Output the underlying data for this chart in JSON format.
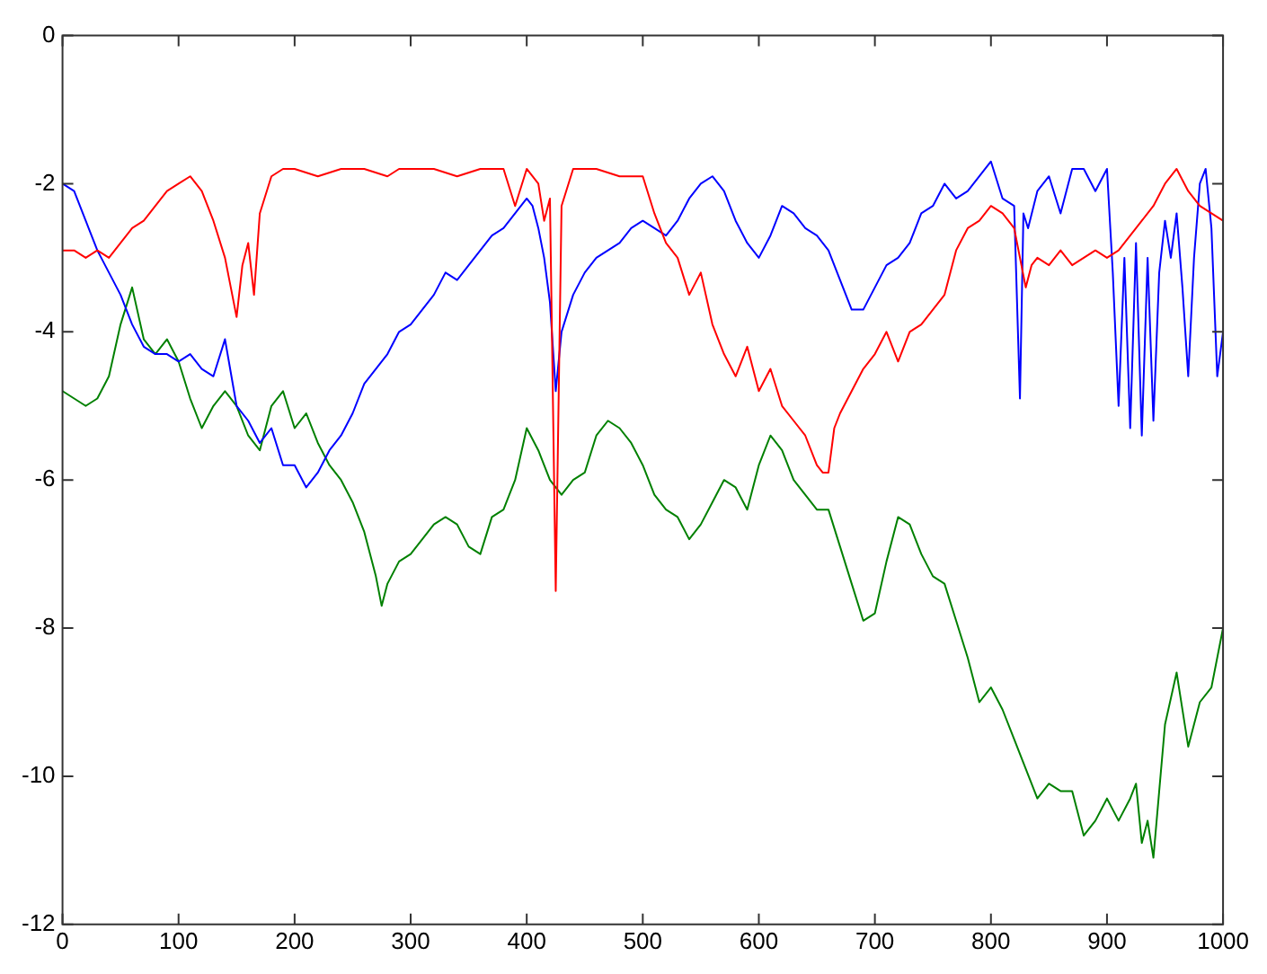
{
  "chart_data": {
    "type": "line",
    "xlim": [
      0,
      1000
    ],
    "xticks": [
      0,
      100,
      200,
      300,
      400,
      500,
      600,
      700,
      800,
      900,
      1000
    ],
    "ylim": [
      -12,
      0
    ],
    "yticks": [
      -12,
      -10,
      -8,
      -6,
      -4,
      -2,
      0
    ],
    "grid": false,
    "legend": false,
    "marker": "none",
    "line_style": "solid",
    "series": [
      {
        "color": "#ff0000",
        "x": [
          0,
          10,
          20,
          30,
          40,
          50,
          60,
          70,
          80,
          90,
          100,
          110,
          120,
          130,
          140,
          145,
          150,
          155,
          160,
          165,
          170,
          180,
          190,
          200,
          220,
          240,
          260,
          280,
          290,
          300,
          320,
          340,
          360,
          380,
          390,
          400,
          410,
          415,
          420,
          425,
          430,
          440,
          460,
          480,
          500,
          510,
          520,
          530,
          540,
          550,
          560,
          570,
          580,
          590,
          600,
          610,
          620,
          630,
          640,
          650,
          655,
          660,
          665,
          670,
          680,
          690,
          700,
          710,
          720,
          730,
          740,
          750,
          760,
          770,
          780,
          790,
          800,
          810,
          820,
          825,
          830,
          835,
          840,
          850,
          860,
          870,
          880,
          890,
          900,
          910,
          920,
          930,
          940,
          950,
          960,
          970,
          980,
          990,
          1000
        ],
        "values": [
          -2.9,
          -2.9,
          -3.0,
          -2.9,
          -3.0,
          -2.8,
          -2.6,
          -2.5,
          -2.3,
          -2.1,
          -2.0,
          -1.9,
          -2.1,
          -2.5,
          -3.0,
          -3.4,
          -3.8,
          -3.1,
          -2.8,
          -3.5,
          -2.4,
          -1.9,
          -1.8,
          -1.8,
          -1.9,
          -1.8,
          -1.8,
          -1.9,
          -1.8,
          -1.8,
          -1.8,
          -1.9,
          -1.8,
          -1.8,
          -2.3,
          -1.8,
          -2.0,
          -2.5,
          -2.2,
          -7.5,
          -2.3,
          -1.8,
          -1.8,
          -1.9,
          -1.9,
          -2.4,
          -2.8,
          -3.0,
          -3.5,
          -3.2,
          -3.9,
          -4.3,
          -4.6,
          -4.2,
          -4.8,
          -4.5,
          -5.0,
          -5.2,
          -5.4,
          -5.8,
          -5.9,
          -5.9,
          -5.3,
          -5.1,
          -4.8,
          -4.5,
          -4.3,
          -4.0,
          -4.4,
          -4.0,
          -3.9,
          -3.7,
          -3.5,
          -2.9,
          -2.6,
          -2.5,
          -2.3,
          -2.4,
          -2.6,
          -3.0,
          -3.4,
          -3.1,
          -3.0,
          -3.1,
          -2.9,
          -3.1,
          -3.0,
          -2.9,
          -3.0,
          -2.9,
          -2.7,
          -2.5,
          -2.3,
          -2.0,
          -1.8,
          -2.1,
          -2.3,
          -2.4,
          -2.5
        ]
      },
      {
        "color": "#0000ff",
        "x": [
          0,
          10,
          20,
          30,
          40,
          50,
          60,
          70,
          80,
          90,
          100,
          110,
          120,
          130,
          140,
          150,
          160,
          170,
          180,
          190,
          200,
          210,
          220,
          230,
          240,
          250,
          260,
          270,
          280,
          290,
          300,
          310,
          320,
          330,
          340,
          350,
          360,
          370,
          380,
          390,
          400,
          405,
          410,
          415,
          420,
          425,
          430,
          440,
          450,
          460,
          470,
          480,
          490,
          500,
          510,
          520,
          530,
          540,
          550,
          560,
          570,
          580,
          590,
          600,
          610,
          620,
          630,
          640,
          650,
          660,
          670,
          680,
          690,
          700,
          710,
          720,
          730,
          740,
          750,
          760,
          770,
          780,
          790,
          800,
          810,
          820,
          825,
          828,
          832,
          840,
          850,
          860,
          870,
          880,
          890,
          900,
          905,
          910,
          915,
          920,
          925,
          930,
          935,
          940,
          945,
          950,
          955,
          960,
          965,
          970,
          975,
          980,
          985,
          990,
          995,
          1000
        ],
        "values": [
          -2.0,
          -2.1,
          -2.5,
          -2.9,
          -3.2,
          -3.5,
          -3.9,
          -4.2,
          -4.3,
          -4.3,
          -4.4,
          -4.3,
          -4.5,
          -4.6,
          -4.1,
          -5.0,
          -5.2,
          -5.5,
          -5.3,
          -5.8,
          -5.8,
          -6.1,
          -5.9,
          -5.6,
          -5.4,
          -5.1,
          -4.7,
          -4.5,
          -4.3,
          -4.0,
          -3.9,
          -3.7,
          -3.5,
          -3.2,
          -3.3,
          -3.1,
          -2.9,
          -2.7,
          -2.6,
          -2.4,
          -2.2,
          -2.3,
          -2.6,
          -3.0,
          -3.6,
          -4.8,
          -4.0,
          -3.5,
          -3.2,
          -3.0,
          -2.9,
          -2.8,
          -2.6,
          -2.5,
          -2.6,
          -2.7,
          -2.5,
          -2.2,
          -2.0,
          -1.9,
          -2.1,
          -2.5,
          -2.8,
          -3.0,
          -2.7,
          -2.3,
          -2.4,
          -2.6,
          -2.7,
          -2.9,
          -3.3,
          -3.7,
          -3.7,
          -3.4,
          -3.1,
          -3.0,
          -2.8,
          -2.4,
          -2.3,
          -2.0,
          -2.2,
          -2.1,
          -1.9,
          -1.7,
          -2.2,
          -2.3,
          -4.9,
          -2.4,
          -2.6,
          -2.1,
          -1.9,
          -2.4,
          -1.8,
          -1.8,
          -2.1,
          -1.8,
          -3.2,
          -5.0,
          -3.0,
          -5.3,
          -2.8,
          -5.4,
          -3.0,
          -5.2,
          -3.2,
          -2.5,
          -3.0,
          -2.4,
          -3.4,
          -4.6,
          -3.0,
          -2.0,
          -1.8,
          -2.6,
          -4.6,
          -4.0
        ]
      },
      {
        "color": "#008000",
        "x": [
          0,
          10,
          20,
          30,
          40,
          50,
          60,
          70,
          80,
          90,
          100,
          110,
          120,
          130,
          140,
          150,
          160,
          170,
          180,
          190,
          200,
          210,
          220,
          230,
          240,
          250,
          260,
          270,
          275,
          280,
          290,
          300,
          310,
          320,
          330,
          340,
          350,
          360,
          370,
          380,
          390,
          400,
          410,
          420,
          430,
          440,
          450,
          460,
          470,
          480,
          490,
          500,
          510,
          520,
          530,
          540,
          550,
          560,
          570,
          580,
          590,
          600,
          610,
          620,
          630,
          640,
          650,
          660,
          670,
          680,
          690,
          700,
          710,
          720,
          730,
          740,
          750,
          760,
          770,
          780,
          790,
          800,
          810,
          820,
          830,
          840,
          850,
          860,
          870,
          880,
          890,
          900,
          910,
          920,
          925,
          930,
          935,
          940,
          945,
          950,
          960,
          970,
          980,
          990,
          1000
        ],
        "values": [
          -4.8,
          -4.9,
          -5.0,
          -4.9,
          -4.6,
          -3.9,
          -3.4,
          -4.1,
          -4.3,
          -4.1,
          -4.4,
          -4.9,
          -5.3,
          -5.0,
          -4.8,
          -5.0,
          -5.4,
          -5.6,
          -5.0,
          -4.8,
          -5.3,
          -5.1,
          -5.5,
          -5.8,
          -6.0,
          -6.3,
          -6.7,
          -7.3,
          -7.7,
          -7.4,
          -7.1,
          -7.0,
          -6.8,
          -6.6,
          -6.5,
          -6.6,
          -6.9,
          -7.0,
          -6.5,
          -6.4,
          -6.0,
          -5.3,
          -5.6,
          -6.0,
          -6.2,
          -6.0,
          -5.9,
          -5.4,
          -5.2,
          -5.3,
          -5.5,
          -5.8,
          -6.2,
          -6.4,
          -6.5,
          -6.8,
          -6.6,
          -6.3,
          -6.0,
          -6.1,
          -6.4,
          -5.8,
          -5.4,
          -5.6,
          -6.0,
          -6.2,
          -6.4,
          -6.4,
          -6.9,
          -7.4,
          -7.9,
          -7.8,
          -7.1,
          -6.5,
          -6.6,
          -7.0,
          -7.3,
          -7.4,
          -7.9,
          -8.4,
          -9.0,
          -8.8,
          -9.1,
          -9.5,
          -9.9,
          -10.3,
          -10.1,
          -10.2,
          -10.2,
          -10.8,
          -10.6,
          -10.3,
          -10.6,
          -10.3,
          -10.1,
          -10.9,
          -10.6,
          -11.1,
          -10.2,
          -9.3,
          -8.6,
          -9.6,
          -9.0,
          -8.8,
          -8.0
        ]
      }
    ]
  }
}
